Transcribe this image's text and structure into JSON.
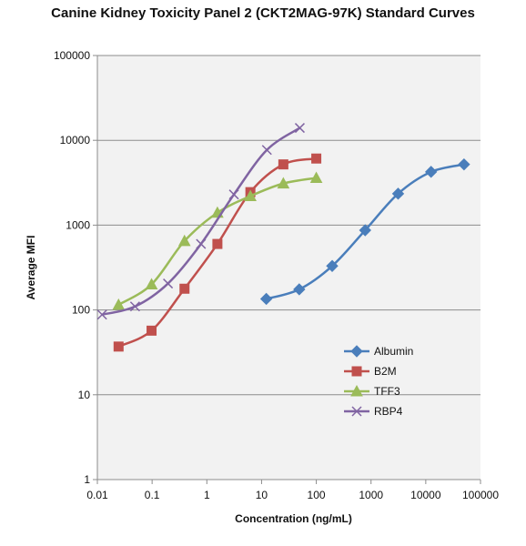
{
  "title": "Canine Kidney Toxicity Panel 2 (CKT2MAG-97K) Standard Curves",
  "chart_data": {
    "type": "line",
    "title": "Canine Kidney Toxicity Panel 2 (CKT2MAG-97K) Standard Curves",
    "xlabel": "Concentration (ng/mL)",
    "ylabel": "Average MFI",
    "xscale": "log",
    "yscale": "log",
    "xlim": [
      0.01,
      100000
    ],
    "ylim": [
      1,
      100000
    ],
    "x_ticks": [
      "0.01",
      "0.1",
      "1",
      "10",
      "100",
      "1000",
      "10000",
      "100000"
    ],
    "y_ticks": [
      "1",
      "10",
      "100",
      "1000",
      "10000",
      "100000"
    ],
    "grid": "horizontal major",
    "legend": "right",
    "plot_background": "#f2f2f2",
    "series": [
      {
        "name": "Albumin",
        "color": "#4a7ebb",
        "marker": "diamond",
        "x": [
          12.2,
          48.8,
          195,
          781,
          3125,
          12500,
          50000
        ],
        "y": [
          135,
          175,
          330,
          870,
          2350,
          4250,
          5200
        ]
      },
      {
        "name": "B2M",
        "color": "#c0504d",
        "marker": "square",
        "x": [
          0.0244,
          0.0977,
          0.391,
          1.56,
          6.25,
          25,
          100
        ],
        "y": [
          37,
          57,
          178,
          600,
          2450,
          5200,
          6100
        ]
      },
      {
        "name": "TFF3",
        "color": "#9bbb59",
        "marker": "triangle",
        "x": [
          0.0244,
          0.0977,
          0.391,
          1.56,
          6.25,
          25,
          100
        ],
        "y": [
          115,
          200,
          650,
          1400,
          2200,
          3100,
          3600
        ]
      },
      {
        "name": "RBP4",
        "color": "#8064a2",
        "marker": "x",
        "x": [
          0.0122,
          0.0488,
          0.195,
          0.781,
          3.125,
          12.5,
          50
        ],
        "y": [
          88,
          110,
          205,
          600,
          2300,
          7700,
          14000
        ]
      }
    ]
  }
}
